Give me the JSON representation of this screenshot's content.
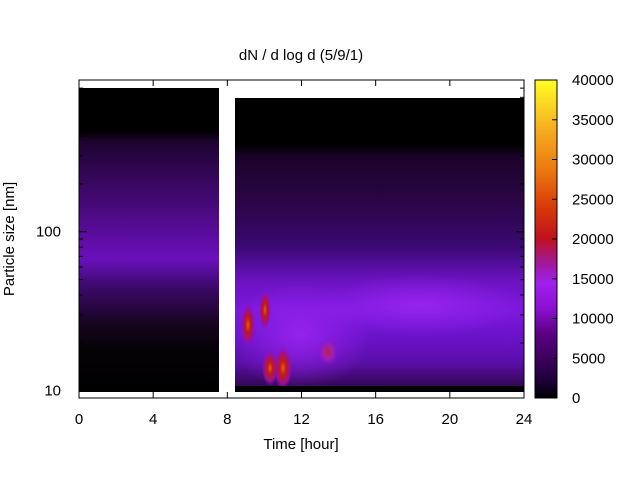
{
  "chart_data": {
    "type": "heatmap",
    "title": "dN / d log d (5/9/1)",
    "xlabel": "Time [hour]",
    "ylabel": "Particle size [nm]",
    "xlim": [
      0,
      24
    ],
    "ylim": [
      9,
      900
    ],
    "y_scale": "log",
    "x_ticks": [
      "0",
      "4",
      "8",
      "12",
      "16",
      "20",
      "24"
    ],
    "x_tick_values": [
      0,
      4,
      8,
      12,
      16,
      20,
      24
    ],
    "y_ticks": [
      "100",
      "10"
    ],
    "y_tick_values": [
      100,
      10
    ],
    "colorbar": {
      "min": 0,
      "max": 40000,
      "ticks": [
        "40000",
        "35000",
        "30000",
        "25000",
        "20000",
        "15000",
        "10000",
        "5000",
        "0"
      ],
      "tick_values": [
        40000,
        35000,
        30000,
        25000,
        20000,
        15000,
        10000,
        5000,
        0
      ],
      "palette": [
        "#000000",
        "#1a0033",
        "#3b005c",
        "#5a0080",
        "#7a00b5",
        "#9a1ef0",
        "#b030f5",
        "#cc1a6a",
        "#cc1010",
        "#e0500a",
        "#f09010",
        "#f5c020",
        "#ffff20"
      ]
    },
    "data_gap_hours": [
      7.6,
      8.3
    ],
    "grid": false
  }
}
